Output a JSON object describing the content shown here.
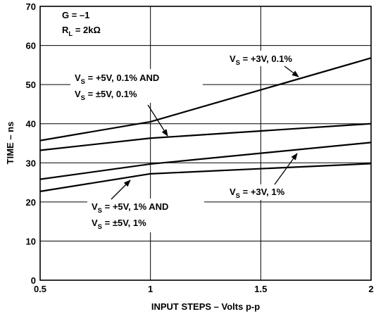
{
  "chart_data": {
    "type": "line",
    "xlabel": "INPUT STEPS – Volts p-p",
    "ylabel": "TIME – ns",
    "xlim": [
      0.5,
      2
    ],
    "ylim": [
      0,
      70
    ],
    "xticks": [
      0.5,
      1,
      1.5,
      2
    ],
    "xtick_labels": [
      "0.5",
      "1",
      "1.5",
      "2"
    ],
    "yticks": [
      0,
      10,
      20,
      30,
      40,
      50,
      60,
      70
    ],
    "ytick_labels": [
      "0",
      "10",
      "20",
      "30",
      "40",
      "50",
      "60",
      "70"
    ],
    "grid": true,
    "series": [
      {
        "x": [
          0.5,
          1,
          2
        ],
        "y": [
          35.7,
          40.5,
          56.8
        ]
      },
      {
        "x": [
          0.5,
          1,
          2
        ],
        "y": [
          33.2,
          36.3,
          40.0
        ]
      },
      {
        "x": [
          0.5,
          1,
          2
        ],
        "y": [
          25.8,
          29.7,
          35.2
        ]
      },
      {
        "x": [
          0.5,
          1,
          2
        ],
        "y": [
          22.7,
          27.2,
          29.8
        ]
      }
    ],
    "conditions": {
      "gain": {
        "main": "G = –1"
      },
      "load": {
        "main": "R",
        "sub": "L",
        "rest": " = 2kΩ"
      }
    },
    "annotations": [
      {
        "name": "label-vs3v-01",
        "lines": [
          {
            "main": "V",
            "sub": "S",
            "rest": " = +3V, 0.1%"
          }
        ]
      },
      {
        "name": "label-vs5v-01",
        "lines": [
          {
            "main": "V",
            "sub": "S",
            "rest": " = +5V, 0.1% AND"
          },
          {
            "main": "V",
            "sub": "S",
            "rest": " = ±5V, 0.1%"
          }
        ]
      },
      {
        "name": "label-vs3v-1",
        "lines": [
          {
            "main": "V",
            "sub": "S",
            "rest": " = +3V, 1%"
          }
        ]
      },
      {
        "name": "label-vs5v-1",
        "lines": [
          {
            "main": "V",
            "sub": "S",
            "rest": " = +5V, 1% AND"
          },
          {
            "main": "V",
            "sub": "S",
            "rest": " = ±5V, 1%"
          }
        ]
      }
    ]
  }
}
